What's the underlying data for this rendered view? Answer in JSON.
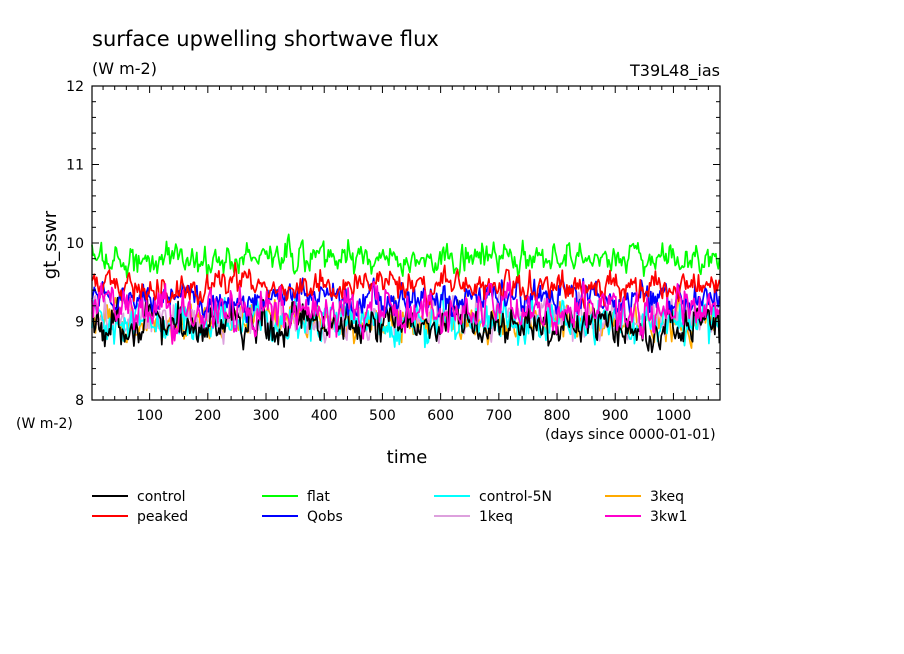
{
  "chart_data": {
    "type": "line",
    "title": "surface upwelling shortwave flux",
    "units": "(W m-2)",
    "run_label": "T39L48_ias",
    "ylabel": "gt_sswr",
    "xlabel": "time",
    "y_units_label": "(W m-2)",
    "x_units_label": "(days since 0000-01-01)",
    "xlim": [
      1,
      1080
    ],
    "ylim": [
      8,
      12
    ],
    "x_ticks": [
      "100",
      "200",
      "300",
      "400",
      "500",
      "600",
      "700",
      "800",
      "900",
      "1000"
    ],
    "y_ticks": [
      "8",
      "9",
      "10",
      "11",
      "12"
    ],
    "x_tick_values": [
      100,
      200,
      300,
      400,
      500,
      600,
      700,
      800,
      900,
      1000
    ],
    "y_tick_values": [
      8,
      9,
      10,
      11,
      12
    ],
    "grid": false,
    "legend_position": "bottom",
    "series": [
      {
        "name": "control",
        "color": "#000000",
        "mean": 8.95,
        "spread": 0.4
      },
      {
        "name": "peaked",
        "color": "#ff0000",
        "mean": 9.45,
        "spread": 0.28
      },
      {
        "name": "flat",
        "color": "#00ff00",
        "mean": 9.8,
        "spread": 0.3
      },
      {
        "name": "Qobs",
        "color": "#0000ff",
        "mean": 9.3,
        "spread": 0.3
      },
      {
        "name": "control-5N",
        "color": "#00ffff",
        "mean": 9.0,
        "spread": 0.4
      },
      {
        "name": "1keq",
        "color": "#dda0dd",
        "mean": 9.05,
        "spread": 0.4
      },
      {
        "name": "3keq",
        "color": "#ffaa00",
        "mean": 9.0,
        "spread": 0.35
      },
      {
        "name": "3kw1",
        "color": "#ff00cc",
        "mean": 9.15,
        "spread": 0.4
      }
    ]
  }
}
